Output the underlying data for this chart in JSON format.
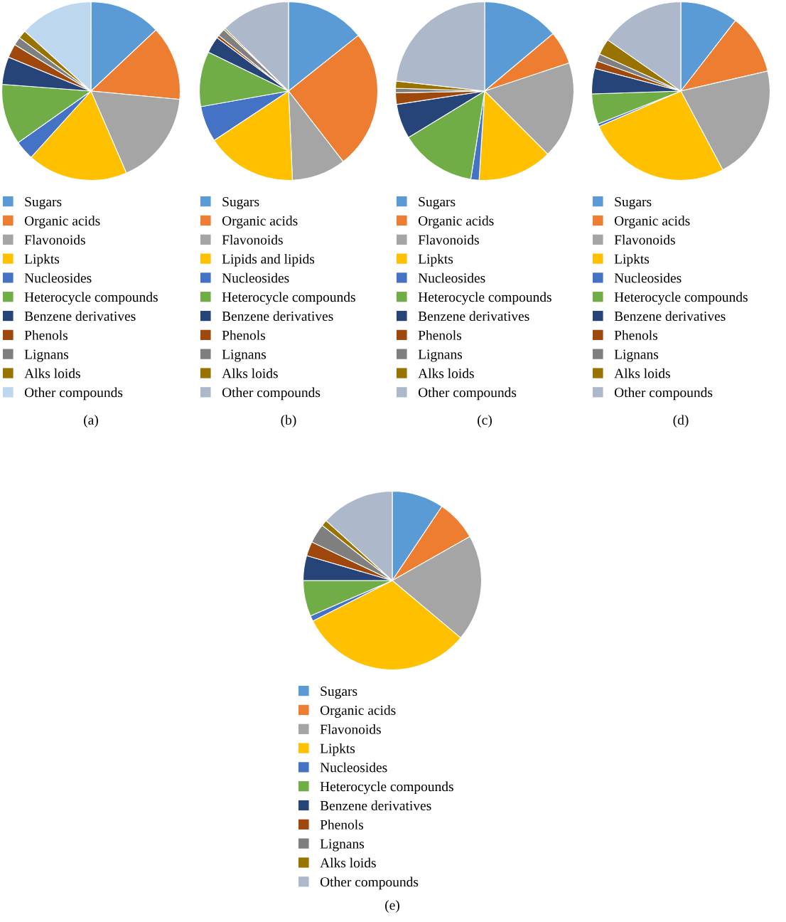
{
  "chart_data": [
    {
      "type": "pie",
      "title": "(a)",
      "legend": "bottom",
      "categories": [
        "Sugars",
        "Organic acids",
        "Flavonoids",
        "Lipkts",
        "Nucleosides",
        "Heterocycle compounds",
        "Benzene derivatives",
        "Phenols",
        "Lignans",
        "Alks loids",
        "Other compounds"
      ],
      "values": [
        13,
        13.5,
        17,
        18.2,
        3.5,
        11,
        5,
        2.5,
        1.5,
        1.5,
        13.3
      ],
      "colors": [
        "#5b9bd5",
        "#ed7d31",
        "#a5a5a5",
        "#ffc000",
        "#4472c4",
        "#70ad47",
        "#264478",
        "#9e480e",
        "#7f7f7f",
        "#997300",
        "#bdd7ee"
      ]
    },
    {
      "type": "pie",
      "title": "(b)",
      "legend": "bottom",
      "categories": [
        "Sugars",
        "Organic acids",
        "Flavonoids",
        "Lipids and lipids",
        "Nucleosides",
        "Heterocycle compounds",
        "Benzene derivatives",
        "Phenols",
        "Lignans",
        "Alks loids",
        "Other compounds"
      ],
      "values": [
        14.3,
        25.2,
        9.8,
        16.4,
        6.5,
        10,
        3,
        0.5,
        1.4,
        0.3,
        12.6
      ],
      "colors": [
        "#5b9bd5",
        "#ed7d31",
        "#a5a5a5",
        "#ffc000",
        "#4472c4",
        "#70ad47",
        "#264478",
        "#9e480e",
        "#7f7f7f",
        "#997300",
        "#adb9ca"
      ]
    },
    {
      "type": "pie",
      "title": "(c)",
      "legend": "bottom",
      "categories": [
        "Sugars",
        "Organic acids",
        "Flavonoids",
        "Lipkts",
        "Nucleosides",
        "Heterocycle compounds",
        "Benzene derivatives",
        "Phenols",
        "Lignans",
        "Alks loids",
        "Other compounds"
      ],
      "values": [
        13.9,
        6,
        17.6,
        13.5,
        1.5,
        13.8,
        6.3,
        2.1,
        0.8,
        1.3,
        23.2
      ],
      "colors": [
        "#5b9bd5",
        "#ed7d31",
        "#a5a5a5",
        "#ffc000",
        "#4472c4",
        "#70ad47",
        "#264478",
        "#9e480e",
        "#7f7f7f",
        "#997300",
        "#adb9ca"
      ]
    },
    {
      "type": "pie",
      "title": "(d)",
      "legend": "bottom",
      "categories": [
        "Sugars",
        "Organic acids",
        "Flavonoids",
        "Lipkts",
        "Nucleosides",
        "Heterocycle compounds",
        "Benzene derivatives",
        "Phenols",
        "Lignans",
        "Alks loids",
        "Other compounds"
      ],
      "values": [
        10.5,
        10.9,
        20.8,
        26.3,
        0.5,
        5.5,
        4.6,
        1.4,
        1.3,
        2.9,
        15.3
      ],
      "colors": [
        "#5b9bd5",
        "#ed7d31",
        "#a5a5a5",
        "#ffc000",
        "#4472c4",
        "#70ad47",
        "#264478",
        "#9e480e",
        "#7f7f7f",
        "#997300",
        "#adb9ca"
      ]
    },
    {
      "type": "pie",
      "title": "(e)",
      "legend": "bottom",
      "categories": [
        "Sugars",
        "Organic acids",
        "Flavonoids",
        "Lipkts",
        "Nucleosides",
        "Heterocycle compounds",
        "Benzene derivatives",
        "Phenols",
        "Lignans",
        "Alks loids",
        "Other compounds"
      ],
      "values": [
        9.4,
        7.4,
        19.3,
        31.4,
        1,
        6.5,
        4.5,
        2.6,
        3.5,
        1.1,
        13.3
      ],
      "colors": [
        "#5b9bd5",
        "#ed7d31",
        "#a5a5a5",
        "#ffc000",
        "#4472c4",
        "#70ad47",
        "#264478",
        "#9e480e",
        "#7f7f7f",
        "#997300",
        "#adb9ca"
      ]
    }
  ]
}
